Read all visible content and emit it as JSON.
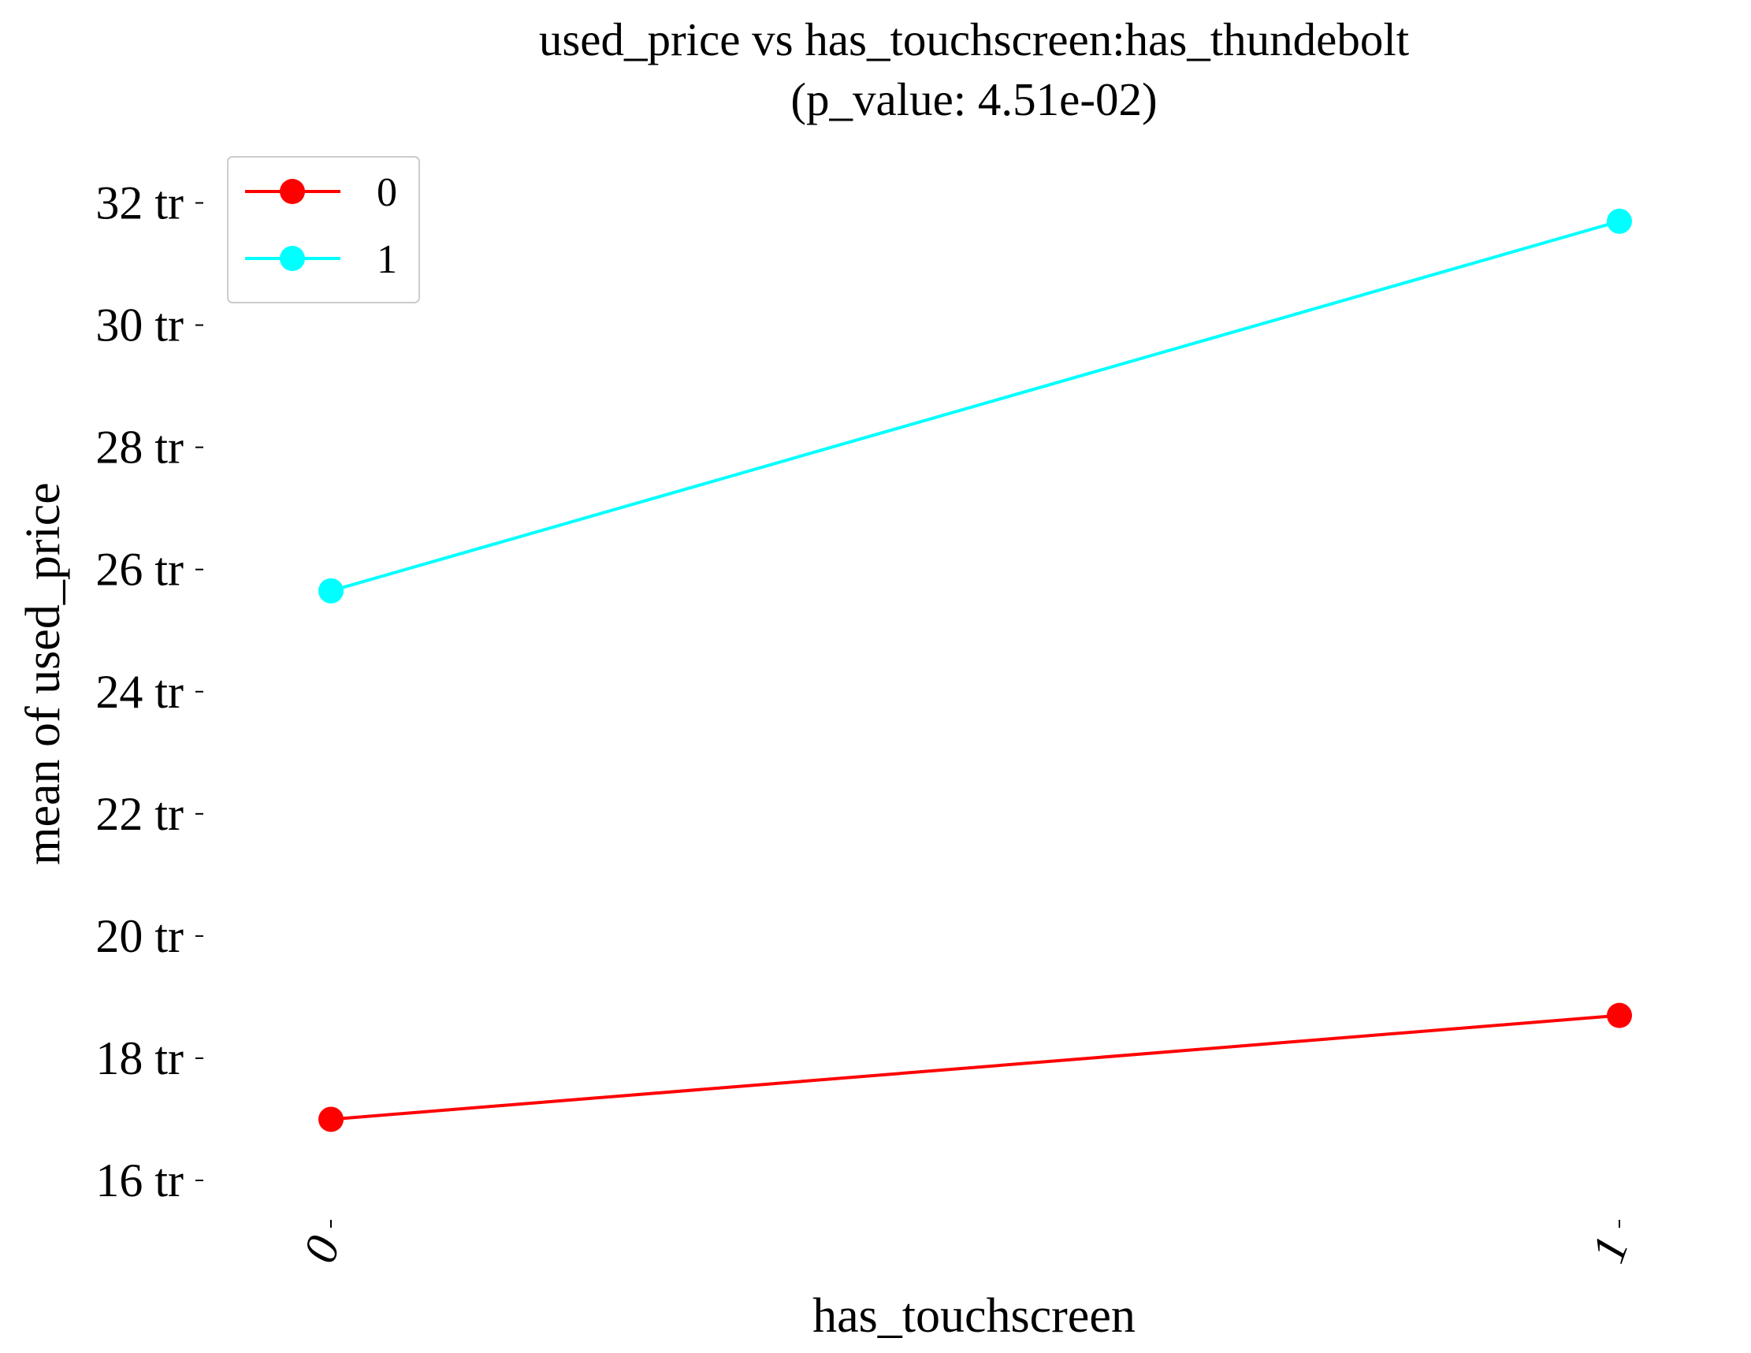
{
  "chart_data": {
    "type": "line",
    "title": "used_price vs has_touchscreen:has_thundebolt",
    "subtitle": "(p_value: 4.51e-02)",
    "xlabel": "has_touchscreen",
    "ylabel": "mean of used_price",
    "categories": [
      "0",
      "1"
    ],
    "y_tick_values": [
      16,
      18,
      20,
      22,
      24,
      26,
      28,
      30,
      32
    ],
    "y_tick_labels": [
      "16 tr",
      "18 tr",
      "20 tr",
      "22 tr",
      "24 tr",
      "26 tr",
      "28 tr",
      "30 tr",
      "32 tr"
    ],
    "ylim": [
      15.2,
      33.0
    ],
    "grid": false,
    "legend_position": "top-left",
    "series": [
      {
        "name": "0",
        "color": "#ff0000",
        "values": [
          17.0,
          18.7
        ]
      },
      {
        "name": "1",
        "color": "#00ffff",
        "values": [
          25.65,
          31.7
        ]
      }
    ]
  }
}
